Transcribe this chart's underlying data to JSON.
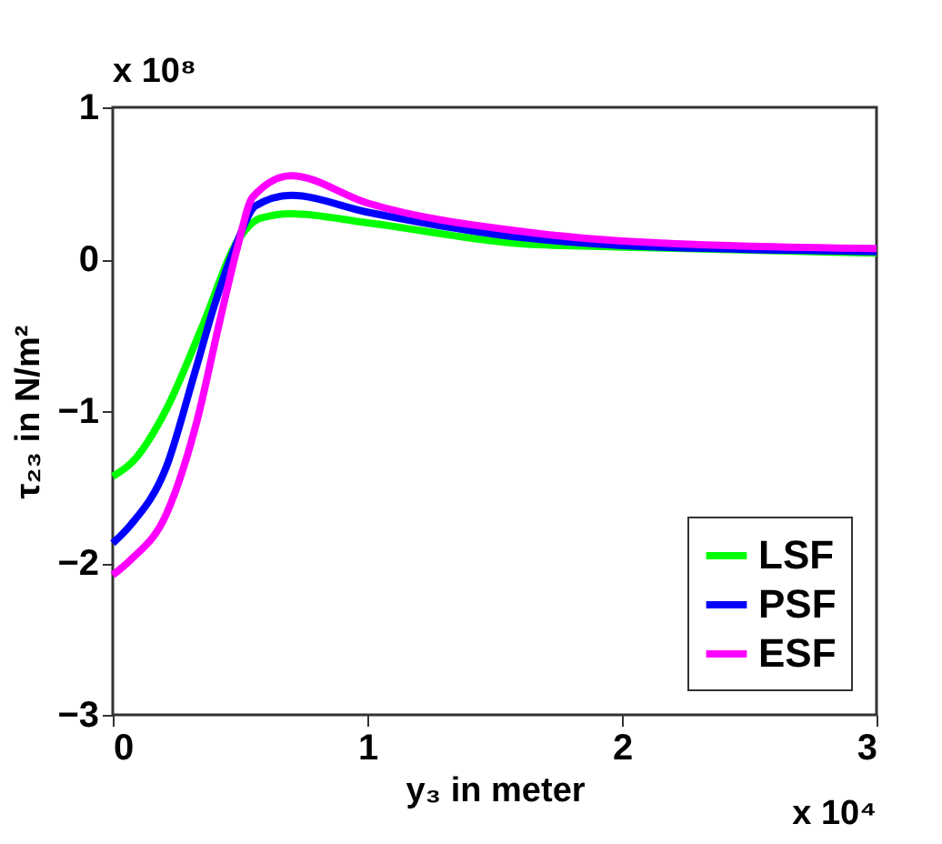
{
  "chart_data": {
    "type": "line",
    "xlabel": "y₃  in meter",
    "ylabel": "τ₂₃ in N/m²",
    "annotations": [
      "x 10⁸",
      "x 10⁴"
    ],
    "xlim": [
      0,
      3
    ],
    "xticks": [
      0,
      1,
      2,
      3
    ],
    "ylim": [
      -3,
      1
    ],
    "yticks": [
      -3,
      -2,
      -1,
      0,
      1
    ],
    "legend": "bottom right",
    "grid": false,
    "line_style": "solid",
    "series": [
      {
        "name": "LSF",
        "color": "#00ff00",
        "x": [
          0,
          0.08,
          0.21,
          0.35,
          0.49,
          0.58,
          0.7,
          1,
          1.62,
          2,
          3
        ],
        "values": [
          -1.43,
          -1.33,
          -0.99,
          -0.45,
          0.12,
          0.27,
          0.3,
          0.24,
          0.1,
          0.08,
          0.04
        ]
      },
      {
        "name": "PSF",
        "color": "#0000ff",
        "x": [
          0,
          0.07,
          0.21,
          0.32,
          0.4,
          0.49,
          0.56,
          0.7,
          1,
          1.62,
          2,
          3
        ],
        "values": [
          -1.87,
          -1.75,
          -1.37,
          -0.76,
          -0.3,
          0.12,
          0.35,
          0.42,
          0.31,
          0.14,
          0.09,
          0.05
        ]
      },
      {
        "name": "ESF",
        "color": "#ff00ff",
        "x": [
          0,
          0.07,
          0.21,
          0.33,
          0.42,
          0.49,
          0.55,
          0.7,
          1,
          1.62,
          2,
          3
        ],
        "values": [
          -2.08,
          -1.98,
          -1.68,
          -1.07,
          -0.41,
          0.08,
          0.41,
          0.55,
          0.37,
          0.18,
          0.12,
          0.07
        ]
      }
    ]
  }
}
